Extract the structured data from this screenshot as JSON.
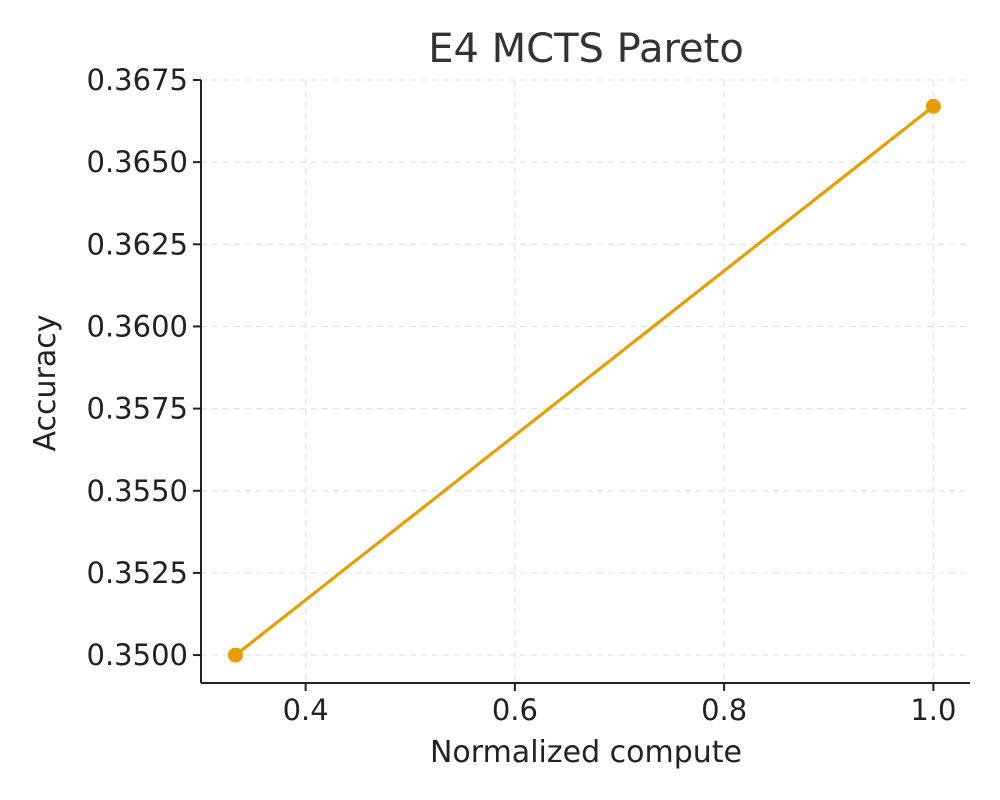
{
  "chart_data": {
    "type": "line",
    "title": "E4 MCTS Pareto",
    "xlabel": "Normalized compute",
    "ylabel": "Accuracy",
    "xlim": [
      0.3,
      1.035
    ],
    "ylim": [
      0.34915,
      0.3675
    ],
    "xticks": [
      0.4,
      0.6,
      0.8,
      1.0
    ],
    "xtick_labels": [
      "0.4",
      "0.6",
      "0.8",
      "1.0"
    ],
    "yticks": [
      0.35,
      0.3525,
      0.355,
      0.3575,
      0.36,
      0.3625,
      0.365,
      0.3675
    ],
    "ytick_labels": [
      "0.3500",
      "0.3525",
      "0.3550",
      "0.3575",
      "0.3600",
      "0.3625",
      "0.3650",
      "0.3675"
    ],
    "grid": true,
    "series": [
      {
        "color": "#E69F00",
        "marker": "circle",
        "x": [
          0.333,
          1.0
        ],
        "y": [
          0.35,
          0.3667
        ]
      }
    ]
  }
}
